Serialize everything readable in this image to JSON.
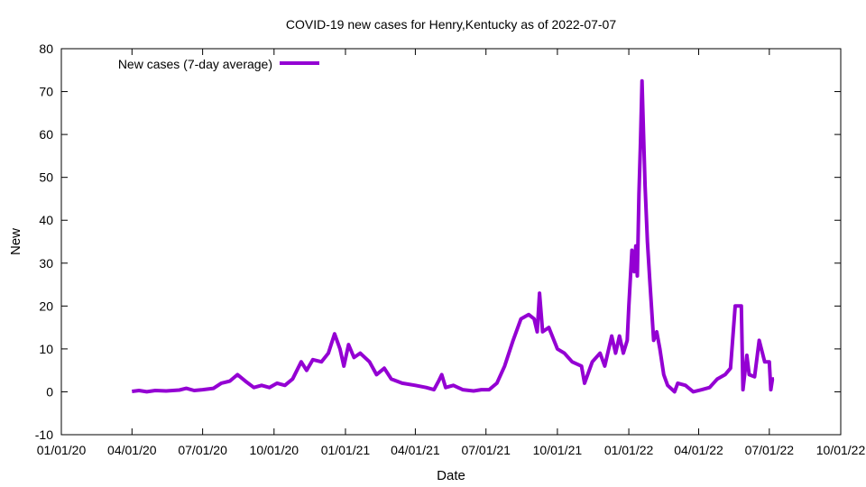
{
  "chart_data": {
    "type": "line",
    "title": "COVID-19 new cases for Henry,Kentucky as of 2022-07-07",
    "xlabel": "Date",
    "ylabel": "New",
    "xlim": [
      "2020-01-01",
      "2022-10-01"
    ],
    "ylim": [
      -10,
      80
    ],
    "x_ticks": [
      "01/01/20",
      "04/01/20",
      "07/01/20",
      "10/01/20",
      "01/01/21",
      "04/01/21",
      "07/01/21",
      "10/01/21",
      "01/01/22",
      "04/01/22",
      "07/01/22",
      "10/01/22"
    ],
    "y_ticks": [
      -10,
      0,
      10,
      20,
      30,
      40,
      50,
      60,
      70,
      80
    ],
    "grid": false,
    "legend_position": "top-left",
    "series": [
      {
        "name": "New cases (7-day average)",
        "color": "#9400d3",
        "points": [
          [
            "2020-04-01",
            0.1
          ],
          [
            "2020-04-10",
            0.3
          ],
          [
            "2020-04-20",
            0.0
          ],
          [
            "2020-05-01",
            0.3
          ],
          [
            "2020-05-15",
            0.2
          ],
          [
            "2020-06-01",
            0.4
          ],
          [
            "2020-06-10",
            0.8
          ],
          [
            "2020-06-20",
            0.3
          ],
          [
            "2020-07-01",
            0.5
          ],
          [
            "2020-07-15",
            0.8
          ],
          [
            "2020-07-25",
            2.0
          ],
          [
            "2020-08-05",
            2.5
          ],
          [
            "2020-08-15",
            4.0
          ],
          [
            "2020-08-25",
            2.5
          ],
          [
            "2020-09-05",
            1.0
          ],
          [
            "2020-09-15",
            1.5
          ],
          [
            "2020-09-25",
            1.0
          ],
          [
            "2020-10-05",
            2.0
          ],
          [
            "2020-10-15",
            1.5
          ],
          [
            "2020-10-25",
            3.0
          ],
          [
            "2020-11-05",
            7.0
          ],
          [
            "2020-11-12",
            5.0
          ],
          [
            "2020-11-20",
            7.5
          ],
          [
            "2020-12-01",
            7.0
          ],
          [
            "2020-12-10",
            9.0
          ],
          [
            "2020-12-18",
            13.5
          ],
          [
            "2020-12-25",
            10.0
          ],
          [
            "2020-12-30",
            6.0
          ],
          [
            "2021-01-05",
            11.0
          ],
          [
            "2021-01-12",
            8.0
          ],
          [
            "2021-01-20",
            9.0
          ],
          [
            "2021-02-01",
            7.0
          ],
          [
            "2021-02-10",
            4.0
          ],
          [
            "2021-02-20",
            5.5
          ],
          [
            "2021-03-01",
            3.0
          ],
          [
            "2021-03-15",
            2.0
          ],
          [
            "2021-04-01",
            1.5
          ],
          [
            "2021-04-15",
            1.0
          ],
          [
            "2021-04-25",
            0.5
          ],
          [
            "2021-05-01",
            2.5
          ],
          [
            "2021-05-05",
            4.0
          ],
          [
            "2021-05-10",
            1.0
          ],
          [
            "2021-05-20",
            1.5
          ],
          [
            "2021-06-01",
            0.5
          ],
          [
            "2021-06-15",
            0.2
          ],
          [
            "2021-06-25",
            0.5
          ],
          [
            "2021-07-05",
            0.5
          ],
          [
            "2021-07-15",
            2.0
          ],
          [
            "2021-07-25",
            6.0
          ],
          [
            "2021-08-05",
            12.0
          ],
          [
            "2021-08-15",
            17.0
          ],
          [
            "2021-08-25",
            18.0
          ],
          [
            "2021-09-01",
            17.0
          ],
          [
            "2021-09-05",
            14.0
          ],
          [
            "2021-09-08",
            23.0
          ],
          [
            "2021-09-12",
            14.0
          ],
          [
            "2021-09-20",
            15.0
          ],
          [
            "2021-10-01",
            10.0
          ],
          [
            "2021-10-10",
            9.0
          ],
          [
            "2021-10-20",
            7.0
          ],
          [
            "2021-11-01",
            6.0
          ],
          [
            "2021-11-05",
            2.0
          ],
          [
            "2021-11-15",
            7.0
          ],
          [
            "2021-11-25",
            9.0
          ],
          [
            "2021-12-01",
            6.0
          ],
          [
            "2021-12-10",
            13.0
          ],
          [
            "2021-12-15",
            9.0
          ],
          [
            "2021-12-20",
            13.0
          ],
          [
            "2021-12-25",
            9.0
          ],
          [
            "2021-12-30",
            12.0
          ],
          [
            "2022-01-01",
            20.0
          ],
          [
            "2022-01-05",
            33.0
          ],
          [
            "2022-01-08",
            28.0
          ],
          [
            "2022-01-10",
            34.0
          ],
          [
            "2022-01-12",
            27.0
          ],
          [
            "2022-01-14",
            46.0
          ],
          [
            "2022-01-16",
            58.0
          ],
          [
            "2022-01-18",
            72.5
          ],
          [
            "2022-01-20",
            60.0
          ],
          [
            "2022-01-22",
            48.0
          ],
          [
            "2022-01-25",
            35.0
          ],
          [
            "2022-01-28",
            26.0
          ],
          [
            "2022-02-02",
            12.0
          ],
          [
            "2022-02-06",
            14.0
          ],
          [
            "2022-02-10",
            10.0
          ],
          [
            "2022-02-15",
            4.0
          ],
          [
            "2022-02-20",
            1.5
          ],
          [
            "2022-03-01",
            0.0
          ],
          [
            "2022-03-05",
            2.0
          ],
          [
            "2022-03-15",
            1.5
          ],
          [
            "2022-03-25",
            0.0
          ],
          [
            "2022-04-05",
            0.5
          ],
          [
            "2022-04-15",
            1.0
          ],
          [
            "2022-04-25",
            3.0
          ],
          [
            "2022-05-05",
            4.0
          ],
          [
            "2022-05-12",
            5.5
          ],
          [
            "2022-05-18",
            20.0
          ],
          [
            "2022-05-26",
            20.0
          ],
          [
            "2022-05-28",
            0.5
          ],
          [
            "2022-06-02",
            8.5
          ],
          [
            "2022-06-05",
            4.0
          ],
          [
            "2022-06-12",
            3.5
          ],
          [
            "2022-06-18",
            12.0
          ],
          [
            "2022-06-25",
            7.0
          ],
          [
            "2022-07-01",
            7.0
          ],
          [
            "2022-07-03",
            0.5
          ],
          [
            "2022-07-05",
            3.0
          ],
          [
            "2022-07-07",
            3.0
          ]
        ]
      }
    ]
  }
}
